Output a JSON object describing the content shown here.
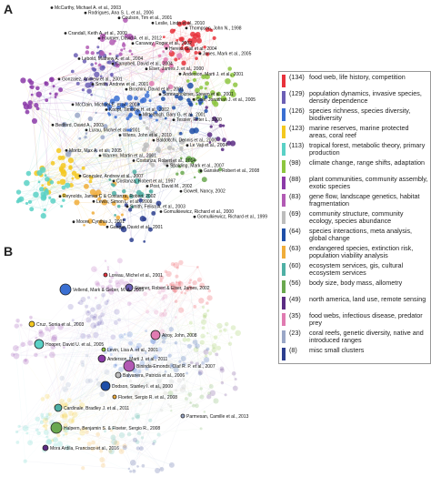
{
  "panels": {
    "a": "A",
    "b": "B"
  },
  "legend": [
    {
      "count": "(134)",
      "label": "food web, life history, competition",
      "color": "#e8323c"
    },
    {
      "count": "(129)",
      "label": "population dynamics, invasive species, density dependence",
      "color": "#6c5fb5"
    },
    {
      "count": "(126)",
      "label": "species richness, species diversity, biodiversity",
      "color": "#3a6fd2"
    },
    {
      "count": "(123)",
      "label": "marine reserves, marine protected areas, coral reef",
      "color": "#f4c81e"
    },
    {
      "count": "(113)",
      "label": "tropical forest, metabolic theory, primary production",
      "color": "#5ad1c6"
    },
    {
      "count": "(98)",
      "label": "climate change, range shifts, adaptation",
      "color": "#8dc63f"
    },
    {
      "count": "(88)",
      "label": "plant communities, community assembly, exotic species",
      "color": "#8b3aa8"
    },
    {
      "count": "(83)",
      "label": "gene flow, landscape genetics, habitat fragmentation",
      "color": "#b25ab4"
    },
    {
      "count": "(69)",
      "label": "community structure, community ecology, species abundance",
      "color": "#bdbdbd"
    },
    {
      "count": "(64)",
      "label": "species interactions, meta analysis, global change",
      "color": "#1f4fa8"
    },
    {
      "count": "(63)",
      "label": "endangered species, extinction risk, population viability analysis",
      "color": "#f0ad3a"
    },
    {
      "count": "(60)",
      "label": "ecosystem services, gis, cultural ecosystem services",
      "color": "#4fb0a5"
    },
    {
      "count": "(56)",
      "label": "body size, body mass, allometry",
      "color": "#6aa84f"
    },
    {
      "count": "(49)",
      "label": "north america, land use, remote sensing",
      "color": "#5b2c83"
    },
    {
      "count": "(35)",
      "label": "food webs, infectious disease, predator prey",
      "color": "#e07bb1"
    },
    {
      "count": "(23)",
      "label": "coral reefs, genetic diversity, native and introduced ranges",
      "color": "#9aa7c7"
    },
    {
      "count": "(8)",
      "label": "misc small clusters",
      "color": "#2d3f8f"
    }
  ],
  "panel_a_labels": [
    "McCarthy, Michael A. et al., 2003",
    "Rodrigues, Ana S. L. et al., 2006",
    "Coulson, Tim et al., 2001",
    "Leslie, Linda et al., 2010",
    "Thompson, John N., 1998",
    "Crandall, Keith A. et al., 2000",
    "Fournier, David A. et al., 2012",
    "Caraway, Roger et al., 2002",
    "Hereid, Gail et al., 2004",
    "Jones, Mark et al., 2005",
    "Lebold, Mathew A. et al., 2004",
    "Campbell, David et al., 2004",
    "Elser, James J. et al., 2000",
    "Anderson, Marti J. et al., 2001",
    "Gonzalez, Andrew et al., 2001",
    "Smith, Andrew et al., 2001",
    "Brochini, David et al., 2001",
    "Sonnenholzner, Steven et al., 2001",
    "Cole, Jonathan J. et al., 2005",
    "McClain, Michael E. et al., 2003",
    "Knopf, Timothy H. et al., 2002",
    "Mittelbach, Gary G. et al., 2001",
    "Tessier, Peter L., 2000",
    "Bedford, David A., 2003",
    "Lurau, Michel et al., 2001",
    "Wiens, John et al., 2010",
    "Baldocchi, Dennis et al., 2000",
    "Le Vaji et al., 2004",
    "Moritz, Max A. et al., 2005",
    "Warren, Martin et al., 2001",
    "Costanza, Robert et al., 2014",
    "Spalding, Mark et al., 2007",
    "Ganske, Robert et al., 2008",
    "Gonzalez, Andrew et al., 2007",
    "Costanza, Robert et al., 1997",
    "Post, David M., 2002",
    "Gowell, Nancy, 2002",
    "Reynolds, James C & Costanza, Robert, 2002",
    "Lewis, Simon L. et al., 2009",
    "Smith, Felisa A. et al., 2003",
    "Gomulkiewicz, Richard et al., 2000",
    "Gomulkiewicz, Richard et al., 1999",
    "Moore, Cynthia J., 2001",
    "Ganger, David et al., 2001"
  ],
  "panel_b_labels": [
    "Loreau, Michel et al., 2001",
    "Sterner, Robert & Elser, James, 2002",
    "Vellend, Mark & Geber, M. A., 2005",
    "Cruz, Sonia et al., 2003",
    "Hooper, David U. et al., 2005",
    "Levin, Lisa A. et al., 2001",
    "Anderson, Marti J. et al., 2011",
    "Bininda-Emonds, Olaf R. P. et al., 2007",
    "Balvanera, Patricia et al., 2006",
    "Dodson, Stanley I. et al., 2000",
    "Floeter, Sergio R. et al., 2008",
    "Cardinale, Bradley J. et al., 2011",
    "Halpern, Benjamin S. & Floeter, Sergio R., 2008",
    "Mora Ardila, Francisco et al., 2016",
    "Alroy, John, 2008",
    "Parmesan, Camille et al., 2013"
  ]
}
